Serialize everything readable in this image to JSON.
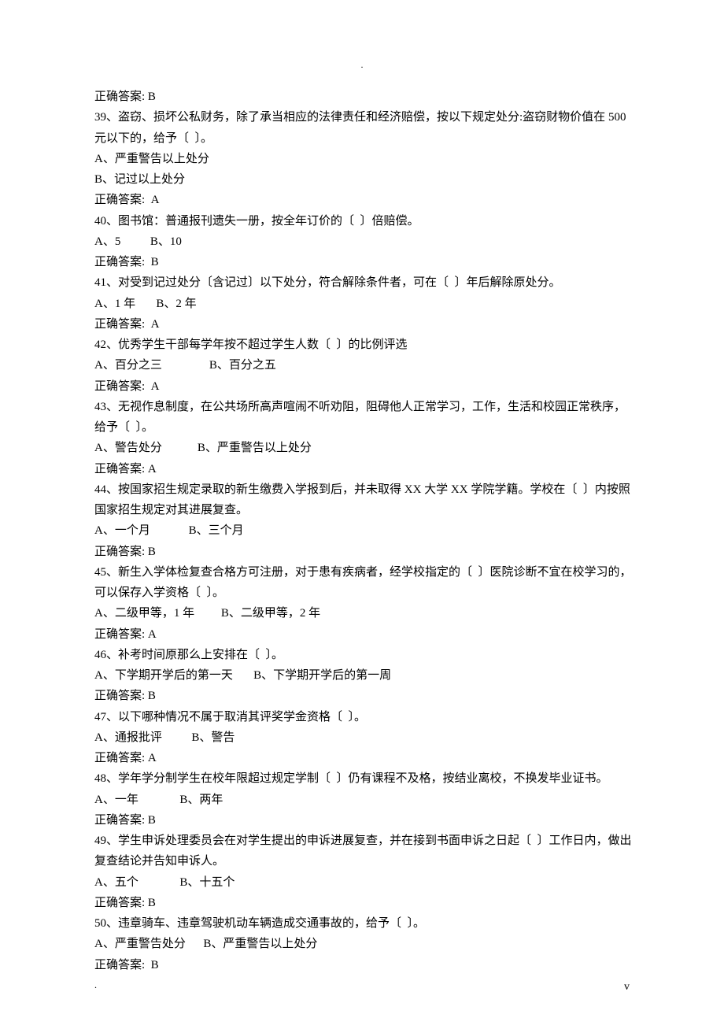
{
  "doc": {
    "topMark": ".",
    "footerLeft": ".",
    "footerRight": "v",
    "fontsize": 15,
    "lineheight": 1.75,
    "color": "#000000",
    "background": "#ffffff"
  },
  "questions": [
    {
      "answerPrefix": "正确答案: B",
      "number": "39",
      "stem": "盗窃、损坏公私财务，除了承当相应的法律责任和经济赔偿，按以下规定处分:盗窃财物价值在 500 元以下的，给予〔  〕。",
      "options": [
        "A、严重警告以上处分",
        "B、记过以上处分"
      ],
      "inline": false,
      "answer": "正确答案:  A"
    },
    {
      "number": "40",
      "stem": "图书馆：普通报刊遗失一册，按全年订价的〔  〕倍赔偿。",
      "options": [
        "A、5          B、10"
      ],
      "inline": true,
      "answer": "正确答案:  B"
    },
    {
      "number": "41",
      "stem": "对受到记过处分〔含记过〕以下处分，符合解除条件者，可在〔  〕年后解除原处分。",
      "options": [
        "A、1 年       B、2 年"
      ],
      "inline": true,
      "answer": "正确答案:  A"
    },
    {
      "number": "42",
      "stem": "优秀学生干部每学年按不超过学生人数〔  〕的比例评选",
      "options": [
        "A、百分之三                B、百分之五"
      ],
      "inline": true,
      "answer": "正确答案:  A"
    },
    {
      "number": "43",
      "stem": "无视作息制度，在公共场所高声喧闹不听劝阻，阻碍他人正常学习，工作，生活和校园正常秩序，给予〔  〕。",
      "options": [
        "A、警告处分            B、严重警告以上处分"
      ],
      "inline": true,
      "answer": "正确答案: A"
    },
    {
      "number": "44",
      "stem": "按国家招生规定录取的新生缴费入学报到后，并未取得 XX 大学 XX 学院学籍。学校在〔  〕内按照国家招生规定对其进展复查。",
      "options": [
        "A、一个月             B、三个月"
      ],
      "inline": true,
      "answer": "正确答案: B"
    },
    {
      "number": "45",
      "stem": "新生入学体检复查合格方可注册，对于患有疾病者，经学校指定的〔  〕医院诊断不宜在校学习的，可以保存入学资格〔  〕。",
      "options": [
        "A、二级甲等，1 年         B、二级甲等，2 年"
      ],
      "inline": true,
      "answer": "正确答案: A"
    },
    {
      "number": "46",
      "stem": "补考时间原那么上安排在〔  〕。",
      "options": [
        "A、下学期开学后的第一天       B、下学期开学后的第一周"
      ],
      "inline": true,
      "answer": "正确答案: B"
    },
    {
      "number": "47",
      "stem": "以下哪种情况不属于取消其评奖学金资格〔  〕。",
      "options": [
        "A、通报批评          B、警告"
      ],
      "inline": true,
      "answer": "正确答案: A"
    },
    {
      "number": "48",
      "stem": "学年学分制学生在校年限超过规定学制〔  〕仍有课程不及格，按结业离校，不换发毕业证书。",
      "options": [
        "A、一年              B、两年"
      ],
      "inline": true,
      "answer": "正确答案: B"
    },
    {
      "number": "49",
      "stem": "学生申诉处理委员会在对学生提出的申诉进展复查，并在接到书面申诉之日起〔  〕工作日内，做出复查结论并告知申诉人。",
      "options": [
        "A、五个              B、十五个"
      ],
      "inline": true,
      "answer": "正确答案: B"
    },
    {
      "number": "50",
      "stem": "违章骑车、违章驾驶机动车辆造成交通事故的，给予〔  〕。",
      "options": [
        "A、严重警告处分      B、严重警告以上处分"
      ],
      "inline": true,
      "answer": "正确答案:  B"
    }
  ]
}
